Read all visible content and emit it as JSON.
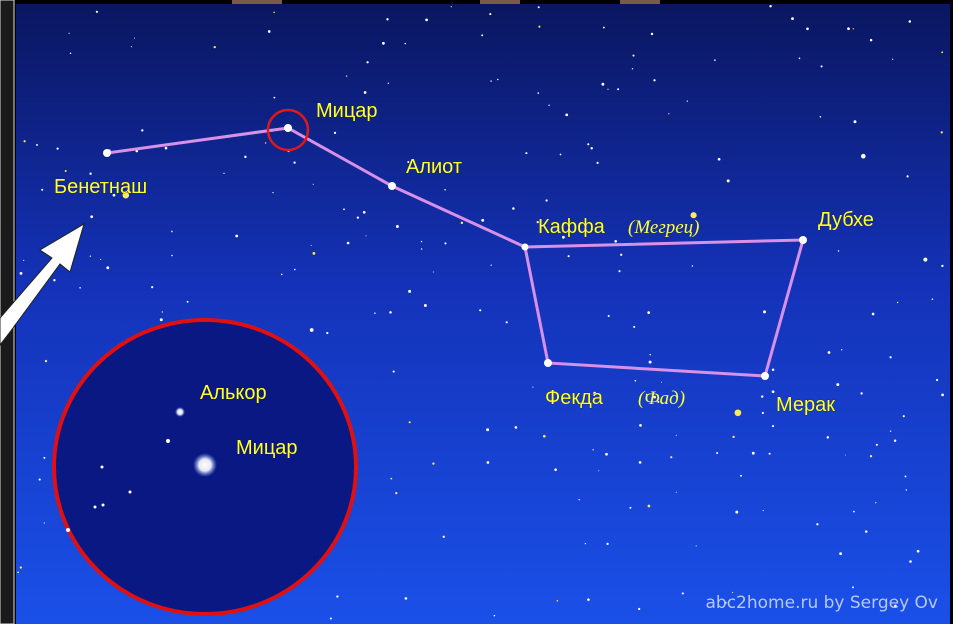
{
  "labels": {
    "mizar": "Мицар",
    "alioth": "Алиот",
    "benetnash": "Бенетнаш",
    "megrez": "Каффа",
    "megrez_alt": "(Мегрец)",
    "dubhe": "Дубхе",
    "phecda": "Фекда",
    "phecda_alt": "(Фад)",
    "merak": "Мерак"
  },
  "inset": {
    "alcor": "Алькор",
    "mizar": "Мицар"
  },
  "credit": "abc2home.ru by Sergey Ov"
}
